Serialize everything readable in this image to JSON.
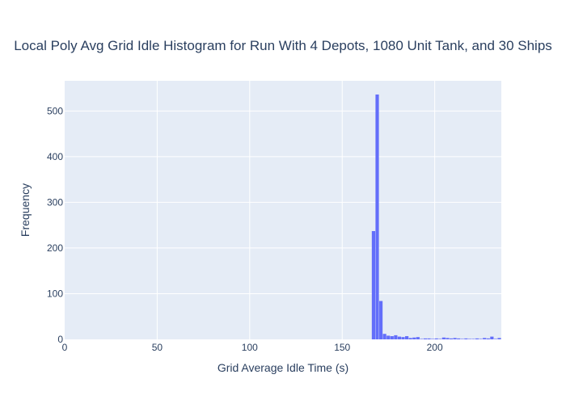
{
  "chart_data": {
    "type": "bar",
    "title": "Local Poly Avg Grid Idle Histogram for Run With 4 Depots, 1080 Unit Tank, and 30 Ships",
    "xlabel": "Grid Average Idle Time (s)",
    "ylabel": "Frequency",
    "xlim": [
      0,
      236
    ],
    "ylim": [
      0,
      566
    ],
    "xticks": [
      0,
      50,
      100,
      150,
      200
    ],
    "yticks": [
      0,
      100,
      200,
      300,
      400,
      500
    ],
    "bin_width": 2,
    "grid": true,
    "legend": "none",
    "bar_color": "#636efa",
    "plot_bg": "#e5ecf6",
    "bins": [
      {
        "x0": 166,
        "value": 237
      },
      {
        "x0": 168,
        "value": 536
      },
      {
        "x0": 170,
        "value": 84
      },
      {
        "x0": 172,
        "value": 12
      },
      {
        "x0": 174,
        "value": 8
      },
      {
        "x0": 176,
        "value": 7
      },
      {
        "x0": 178,
        "value": 9
      },
      {
        "x0": 180,
        "value": 6
      },
      {
        "x0": 182,
        "value": 5
      },
      {
        "x0": 184,
        "value": 7
      },
      {
        "x0": 186,
        "value": 3
      },
      {
        "x0": 188,
        "value": 4
      },
      {
        "x0": 190,
        "value": 5
      },
      {
        "x0": 192,
        "value": 1
      },
      {
        "x0": 194,
        "value": 2
      },
      {
        "x0": 196,
        "value": 2
      },
      {
        "x0": 198,
        "value": 1
      },
      {
        "x0": 200,
        "value": 2
      },
      {
        "x0": 202,
        "value": 1
      },
      {
        "x0": 204,
        "value": 4
      },
      {
        "x0": 206,
        "value": 3
      },
      {
        "x0": 208,
        "value": 2
      },
      {
        "x0": 210,
        "value": 3
      },
      {
        "x0": 212,
        "value": 2
      },
      {
        "x0": 214,
        "value": 1
      },
      {
        "x0": 216,
        "value": 2
      },
      {
        "x0": 218,
        "value": 1
      },
      {
        "x0": 220,
        "value": 1
      },
      {
        "x0": 222,
        "value": 2
      },
      {
        "x0": 224,
        "value": 1
      },
      {
        "x0": 226,
        "value": 3
      },
      {
        "x0": 228,
        "value": 2
      },
      {
        "x0": 230,
        "value": 6
      },
      {
        "x0": 232,
        "value": 1
      },
      {
        "x0": 234,
        "value": 3
      }
    ]
  }
}
